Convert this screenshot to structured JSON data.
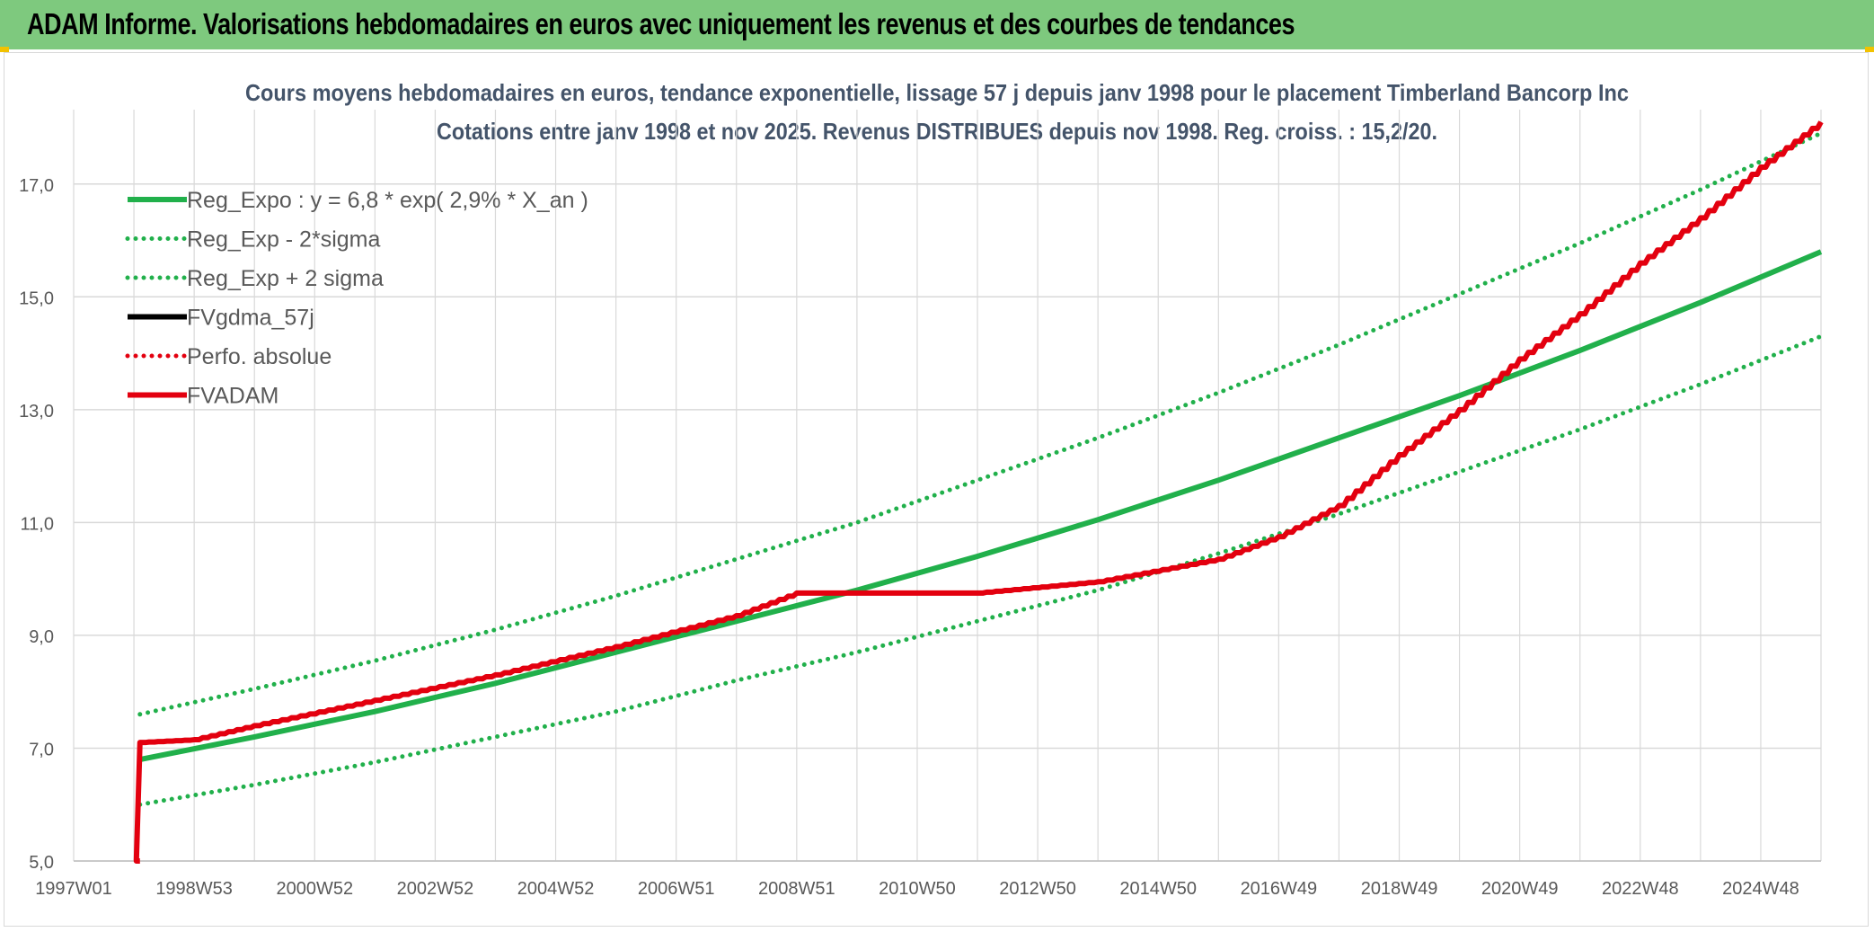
{
  "banner": {
    "title": "ADAM Informe. Valorisations hebdomadaires en euros avec uniquement les revenus et des courbes de tendances"
  },
  "colors": {
    "banner_bg": "#7ec97e",
    "green": "#21b04b",
    "red": "#e3000f",
    "black": "#000000",
    "grid": "#d9d9d9",
    "text": "#44546a"
  },
  "chart_data": {
    "type": "line",
    "title": "Cours moyens hebdomadaires en euros, tendance exponentielle, lissage 57 j depuis janv 1998 pour le placement Timberland Bancorp Inc",
    "subtitle": "Cotations entre janv 1998 et nov 2025. Revenus DISTRIBUES depuis nov 1998. Reg. croiss. : 15,2/20.",
    "xlabel": "",
    "ylabel": "",
    "x_ticks": [
      "1997W01",
      "1998W53",
      "2000W52",
      "2002W52",
      "2004W52",
      "2006W51",
      "2008W51",
      "2010W50",
      "2012W50",
      "2014W50",
      "2016W49",
      "2018W49",
      "2020W49",
      "2022W48",
      "2024W48"
    ],
    "xlim": [
      1997.0,
      2026.0
    ],
    "ylim": [
      5.0,
      18.0
    ],
    "y_ticks": [
      "5,0",
      "7,0",
      "9,0",
      "11,0",
      "13,0",
      "15,0",
      "17,0"
    ],
    "grid": true,
    "legend_position": "top-left",
    "legend": [
      {
        "label": "Reg_Expo : y = 6,8 * exp( 2,9% *  X_an )",
        "color": "#21b04b",
        "style": "solid"
      },
      {
        "label": "Reg_Exp - 2*sigma",
        "color": "#21b04b",
        "style": "dotted"
      },
      {
        "label": "Reg_Exp + 2 sigma",
        "color": "#21b04b",
        "style": "dotted"
      },
      {
        "label": "FVgdma_57j",
        "color": "#000000",
        "style": "solid"
      },
      {
        "label": "Perfo. absolue",
        "color": "#e3000f",
        "style": "dotted"
      },
      {
        "label": "FVADAM",
        "color": "#e3000f",
        "style": "solid"
      }
    ],
    "series": [
      {
        "name": "Reg_Expo : y = 6,8 * exp( 2,9% *  X_an )",
        "color": "#21b04b",
        "style": "solid",
        "x": [
          1998.1,
          2000,
          2002,
          2004,
          2006,
          2008,
          2010,
          2012,
          2014,
          2016,
          2018,
          2020,
          2022,
          2024,
          2026
        ],
        "y": [
          6.8,
          7.2,
          7.65,
          8.15,
          8.7,
          9.25,
          9.8,
          10.4,
          11.05,
          11.75,
          12.5,
          13.25,
          14.05,
          14.9,
          15.8
        ]
      },
      {
        "name": "Reg_Exp - 2*sigma",
        "color": "#21b04b",
        "style": "dotted",
        "x": [
          1998.1,
          2000,
          2002,
          2004,
          2006,
          2008,
          2010,
          2012,
          2014,
          2016,
          2018,
          2020,
          2022,
          2024,
          2026
        ],
        "y": [
          6.0,
          6.35,
          6.75,
          7.2,
          7.65,
          8.2,
          8.7,
          9.25,
          9.8,
          10.45,
          11.15,
          11.9,
          12.65,
          13.45,
          14.3
        ]
      },
      {
        "name": "Reg_Exp + 2 sigma",
        "color": "#21b04b",
        "style": "dotted",
        "x": [
          1998.1,
          2000,
          2002,
          2004,
          2006,
          2008,
          2010,
          2012,
          2014,
          2016,
          2018,
          2020,
          2022,
          2024,
          2026
        ],
        "y": [
          7.6,
          8.05,
          8.55,
          9.1,
          9.7,
          10.35,
          11.0,
          11.75,
          12.5,
          13.3,
          14.15,
          15.05,
          15.95,
          16.9,
          17.9
        ]
      },
      {
        "name": "FVgdma_57j",
        "color": "#000000",
        "style": "solid",
        "x": [
          1998.1,
          1999,
          2000,
          2002,
          2004,
          2006,
          2008,
          2009,
          2010,
          2012,
          2014,
          2016,
          2017,
          2018,
          2019,
          2020,
          2021,
          2022,
          2023,
          2024,
          2025,
          2026
        ],
        "y": [
          7.1,
          7.15,
          7.4,
          7.85,
          8.3,
          8.8,
          9.35,
          9.75,
          9.75,
          9.75,
          9.95,
          10.35,
          10.75,
          11.3,
          12.2,
          13.0,
          13.9,
          14.7,
          15.6,
          16.4,
          17.3,
          18.1
        ]
      },
      {
        "name": "FVADAM",
        "color": "#e3000f",
        "style": "solid",
        "x": [
          1998.1,
          1998.1,
          1999,
          2000,
          2002,
          2004,
          2006,
          2008,
          2009,
          2010,
          2012,
          2014,
          2016,
          2017,
          2018,
          2019,
          2020,
          2021,
          2022,
          2023,
          2024,
          2025,
          2026
        ],
        "y": [
          5.0,
          7.1,
          7.15,
          7.4,
          7.85,
          8.3,
          8.8,
          9.35,
          9.75,
          9.75,
          9.75,
          9.95,
          10.35,
          10.75,
          11.3,
          12.2,
          13.0,
          13.9,
          14.7,
          15.6,
          16.4,
          17.3,
          18.1
        ]
      }
    ]
  }
}
